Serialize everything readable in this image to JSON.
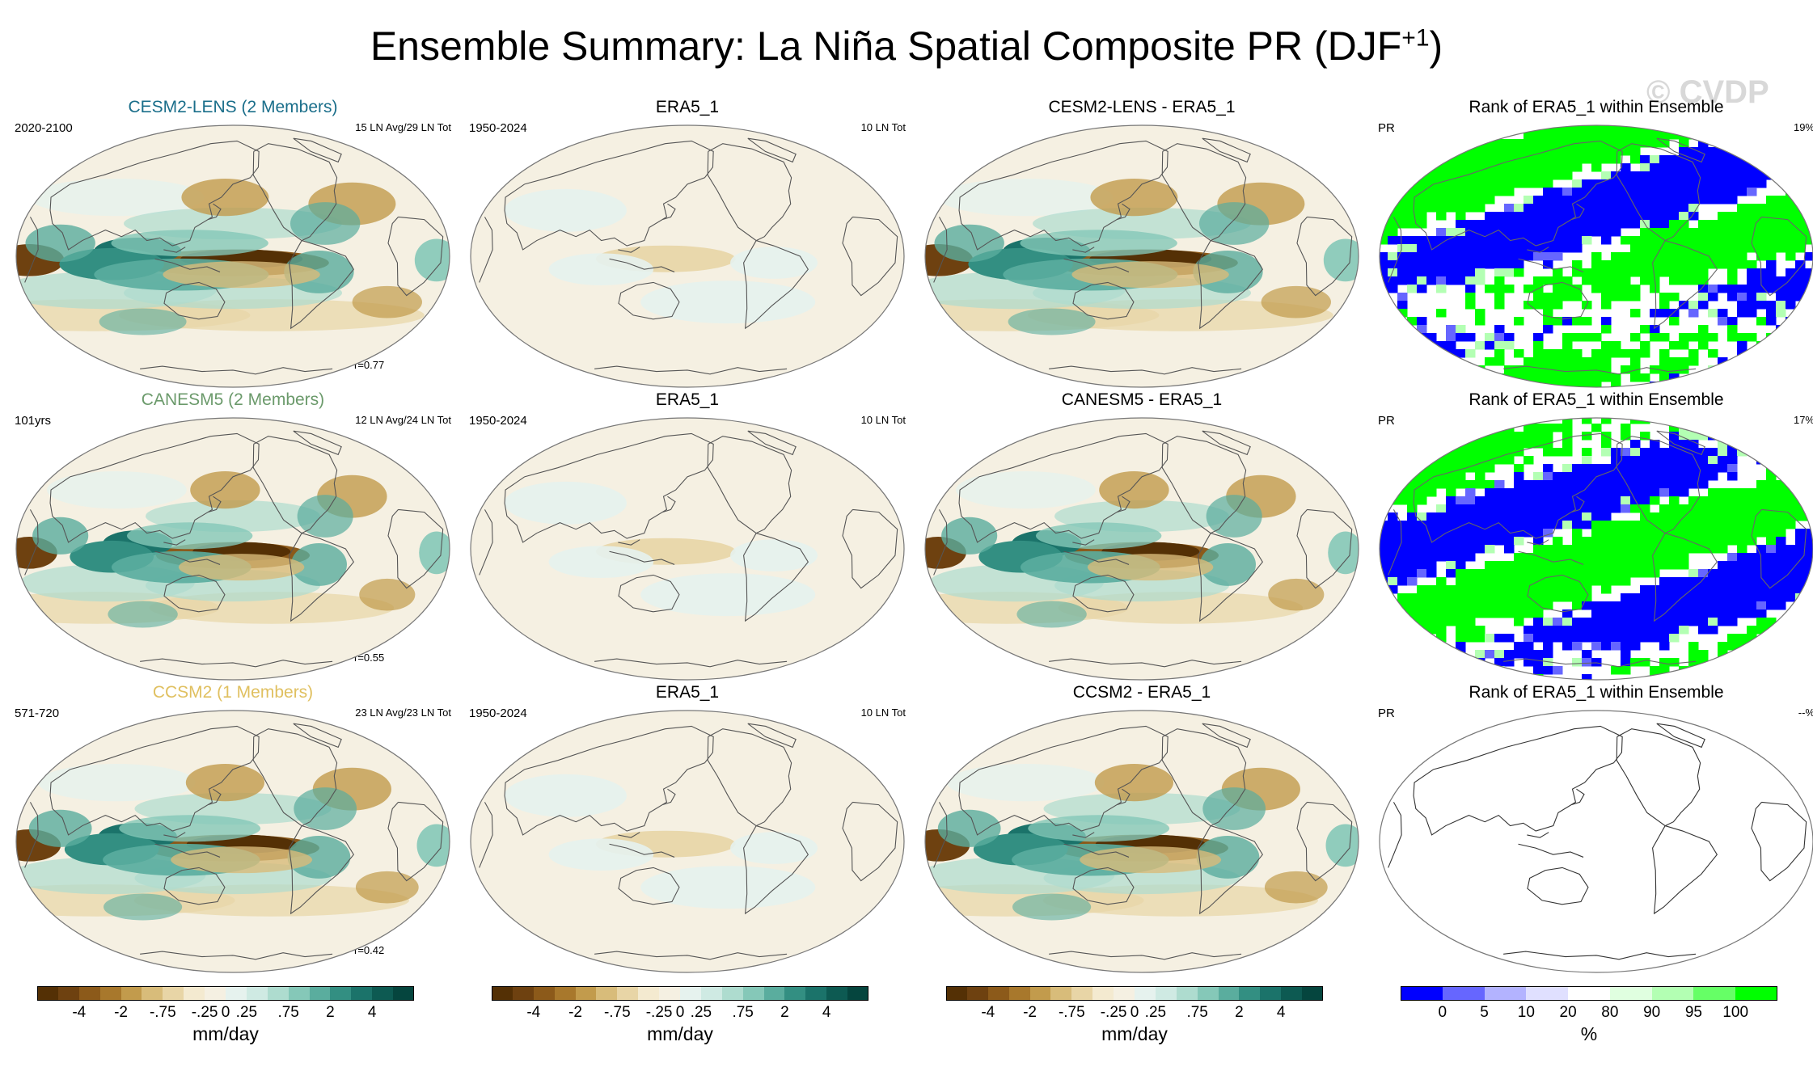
{
  "title": {
    "main": "Ensemble Summary: La Niña Spatial Composite PR (DJF",
    "sup": "+1",
    "close": ")"
  },
  "watermark": "© CVDP",
  "chart_data": {
    "type": "heatmap",
    "variable": "PR",
    "rows": [
      {
        "model": {
          "title": "CESM2-LENS (2 Members)",
          "color": "#1a6e8a",
          "years": "2020-2100",
          "count": "15 LN Avg/29 LN Tot",
          "r": "r=0.77"
        },
        "obs": {
          "title": "ERA5_1",
          "years": "1950-2024",
          "count": "10 LN Tot"
        },
        "diff": {
          "title": "CESM2-LENS - ERA5_1"
        },
        "rank": {
          "title": "Rank of ERA5_1 within Ensemble",
          "var": "PR",
          "pct": "19%"
        }
      },
      {
        "model": {
          "title": "CANESM5 (2 Members)",
          "color": "#6b9a6b",
          "years": "101yrs",
          "count": "12 LN Avg/24 LN Tot",
          "r": "r=0.55"
        },
        "obs": {
          "title": "ERA5_1",
          "years": "1950-2024",
          "count": "10 LN Tot"
        },
        "diff": {
          "title": "CANESM5 - ERA5_1"
        },
        "rank": {
          "title": "Rank of ERA5_1 within Ensemble",
          "var": "PR",
          "pct": "17%"
        }
      },
      {
        "model": {
          "title": "CCSM2 (1 Members)",
          "color": "#e0c060",
          "years": "571-720",
          "count": "23 LN Avg/23 LN Tot",
          "r": "r=0.42"
        },
        "obs": {
          "title": "ERA5_1",
          "years": "1950-2024",
          "count": "10 LN Tot"
        },
        "diff": {
          "title": "CCSM2 - ERA5_1"
        },
        "rank": {
          "title": "Rank of ERA5_1 within Ensemble",
          "var": "PR",
          "pct": "--%"
        }
      }
    ],
    "colorbar_pr": {
      "ticks": [
        "-4",
        "-2",
        "-.75",
        "-.25",
        "0",
        ".25",
        ".75",
        "2",
        "4"
      ],
      "unit": "mm/day",
      "colors": [
        "#543005",
        "#6e4110",
        "#8c5a1a",
        "#a8782c",
        "#c29b4c",
        "#d8bc7a",
        "#e8d5a6",
        "#f4ead0",
        "#f5f0e2",
        "#e6f2ee",
        "#cfeae3",
        "#aedccf",
        "#85c8b8",
        "#5aad9e",
        "#338f82",
        "#1b736a",
        "#0d5a52",
        "#05453e"
      ]
    },
    "colorbar_rank": {
      "ticks": [
        "0",
        "5",
        "10",
        "20",
        "80",
        "90",
        "95",
        "100"
      ],
      "unit": "%",
      "colors": [
        "#0000ff",
        "#6666ff",
        "#b3b3ff",
        "#e0e0ff",
        "#ffffff",
        "#e0ffe0",
        "#b3ffb3",
        "#66ff66",
        "#00ff00"
      ]
    }
  }
}
